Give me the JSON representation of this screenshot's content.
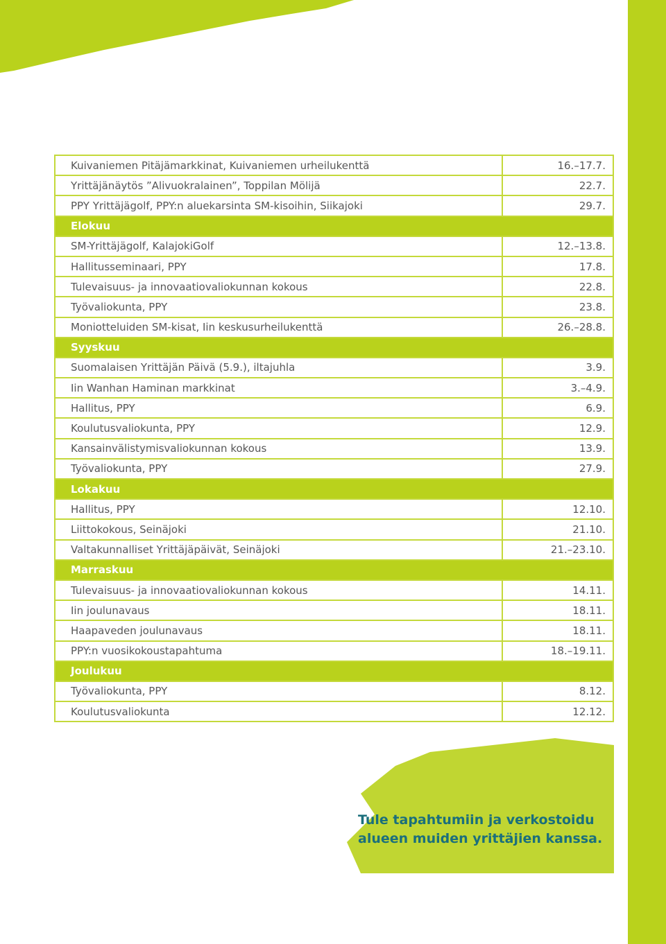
{
  "table": {
    "rows": [
      {
        "event": "Kuivaniemen Pitäjämarkkinat, Kuivaniemen urheilukenttä",
        "date": "16.–17.7."
      },
      {
        "event": "Yrittäjänäytös ”Alivuokralainen”, Toppilan Mölijä",
        "date": "22.7."
      },
      {
        "event": "PPY Yrittäjägolf, PPY:n aluekarsinta SM-kisoihin, Siikajoki",
        "date": "29.7."
      },
      {
        "month": "Elokuu"
      },
      {
        "event": "SM-Yrittäjägolf, KalajokiGolf",
        "date": "12.–13.8."
      },
      {
        "event": "Hallitusseminaari, PPY",
        "date": "17.8."
      },
      {
        "event": "Tulevaisuus- ja innovaatiovaliokunnan kokous",
        "date": "22.8."
      },
      {
        "event": "Työvaliokunta, PPY",
        "date": "23.8."
      },
      {
        "event": "Moniotteluiden SM-kisat, Iin keskusurheilukenttä",
        "date": "26.–28.8."
      },
      {
        "month": "Syyskuu"
      },
      {
        "event": "Suomalaisen Yrittäjän Päivä (5.9.), iltajuhla",
        "date": "3.9."
      },
      {
        "event": "Iin Wanhan Haminan markkinat",
        "date": "3.–4.9."
      },
      {
        "event": "Hallitus, PPY",
        "date": "6.9."
      },
      {
        "event": "Koulutusvaliokunta, PPY",
        "date": "12.9."
      },
      {
        "event": "Kansainvälistymisvaliokunnan kokous",
        "date": "13.9."
      },
      {
        "event": "Työvaliokunta, PPY",
        "date": "27.9."
      },
      {
        "month": "Lokakuu"
      },
      {
        "event": "Hallitus, PPY",
        "date": "12.10."
      },
      {
        "event": "Liittokokous, Seinäjoki",
        "date": "21.10."
      },
      {
        "event": "Valtakunnalliset Yrittäjäpäivät, Seinäjoki",
        "date": "21.–23.10."
      },
      {
        "month": "Marraskuu"
      },
      {
        "event": "Tulevaisuus- ja innovaatiovaliokunnan kokous",
        "date": "14.11."
      },
      {
        "event": "Iin joulunavaus",
        "date": "18.11."
      },
      {
        "event": "Haapaveden joulunavaus",
        "date": "18.11."
      },
      {
        "event": "PPY:n vuosikokoustapahtuma",
        "date": "18.–19.11."
      },
      {
        "month": "Joulukuu"
      },
      {
        "event": "Työvaliokunta, PPY",
        "date": "8.12."
      },
      {
        "event": "Koulutusvaliokunta",
        "date": "12.12."
      }
    ]
  },
  "slogan": {
    "lines": [
      "Tule tapahtumiin ja verkostoidu",
      "alueen muiden yrittäjien kanssa."
    ]
  }
}
